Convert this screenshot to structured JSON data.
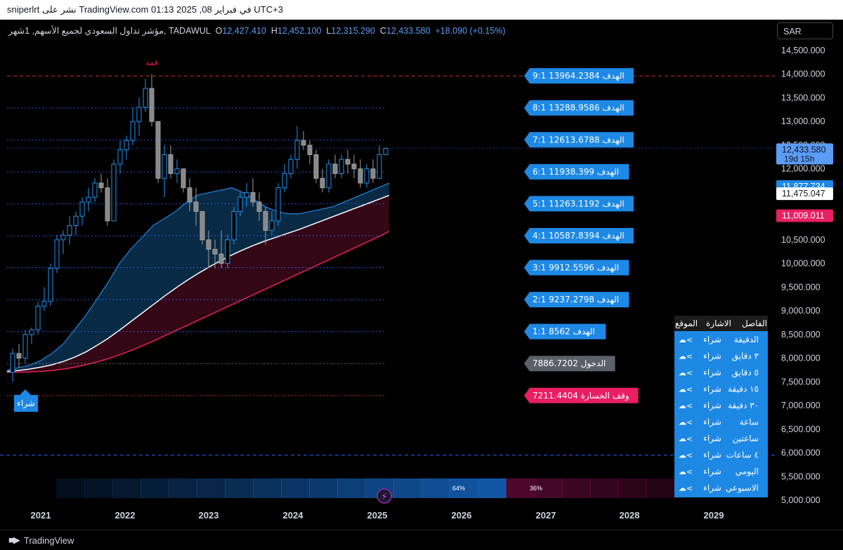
{
  "header": {
    "text": "sniperlrt نشر على TradingView.com في فبراير 08, 2025 01:13 UTC+3"
  },
  "legend": {
    "symbol": "مؤشر تداول السعودي لجميع الأسهم, 1شهر, TADAWUL",
    "o_label": "O",
    "o": "12,427.410",
    "h_label": "H",
    "h": "12,452.100",
    "l_label": "L",
    "l": "12,315.290",
    "c_label": "C",
    "c": "12,433.580",
    "change": "+18.090 (+0.15%)"
  },
  "currency": "SAR",
  "footer": {
    "brand": "TradingView"
  },
  "colors": {
    "up": "#4d4d4d",
    "down": "#888888",
    "line_up": "#2962ff",
    "blue_label": "#1e88e5",
    "red": "#f23645",
    "pink": "#e91e63",
    "gray_label": "#5d606b"
  },
  "chart_data": {
    "type": "candlestick",
    "ylim": [
      4800,
      14900
    ],
    "yticks": [
      5000,
      5500,
      6000,
      6500,
      7000,
      7500,
      8000,
      8500,
      9000,
      9500,
      10000,
      10500,
      11000,
      11500,
      12000,
      12500,
      13000,
      13500,
      14000,
      14500
    ],
    "ytick_labels": [
      "5,000.000",
      "5,500.000",
      "6,000.000",
      "6,500.000",
      "7,000.000",
      "7,500.000",
      "8,000.000",
      "8,500.000",
      "9,000.000",
      "9,500.000",
      "10,000.000",
      "10,500.000",
      "11,000.000",
      "11,500.000",
      "12,000.000",
      "12,500.000",
      "13,000.000",
      "13,500.000",
      "14,000.000",
      "14,500.000"
    ],
    "x_labels": [
      "2021",
      "2022",
      "2023",
      "2024",
      "2025",
      "2026",
      "2027",
      "2028",
      "2029"
    ],
    "peak_label": "قمة",
    "buy_label": "شراء",
    "candles": [
      {
        "o": 7700,
        "h": 8200,
        "l": 7500,
        "c": 8100
      },
      {
        "o": 8100,
        "h": 8300,
        "l": 7800,
        "c": 8000
      },
      {
        "o": 8000,
        "h": 8600,
        "l": 7900,
        "c": 8500
      },
      {
        "o": 8500,
        "h": 8650,
        "l": 8300,
        "c": 8600
      },
      {
        "o": 8600,
        "h": 9200,
        "l": 8500,
        "c": 9100
      },
      {
        "o": 9100,
        "h": 9500,
        "l": 9000,
        "c": 9200
      },
      {
        "o": 9200,
        "h": 10000,
        "l": 9100,
        "c": 9900
      },
      {
        "o": 9900,
        "h": 10600,
        "l": 9800,
        "c": 10500
      },
      {
        "o": 10500,
        "h": 10700,
        "l": 10200,
        "c": 10600
      },
      {
        "o": 10600,
        "h": 11000,
        "l": 10400,
        "c": 10800
      },
      {
        "o": 10800,
        "h": 11100,
        "l": 10600,
        "c": 11000
      },
      {
        "o": 11000,
        "h": 11400,
        "l": 10800,
        "c": 11300
      },
      {
        "o": 11300,
        "h": 11600,
        "l": 11100,
        "c": 11400
      },
      {
        "o": 11400,
        "h": 11800,
        "l": 11300,
        "c": 11700
      },
      {
        "o": 11700,
        "h": 11900,
        "l": 11500,
        "c": 11600
      },
      {
        "o": 11600,
        "h": 11800,
        "l": 10800,
        "c": 10900
      },
      {
        "o": 10900,
        "h": 12200,
        "l": 10900,
        "c": 12100
      },
      {
        "o": 12100,
        "h": 12600,
        "l": 11900,
        "c": 12400
      },
      {
        "o": 12400,
        "h": 12700,
        "l": 12200,
        "c": 12600
      },
      {
        "o": 12600,
        "h": 13300,
        "l": 12500,
        "c": 13000
      },
      {
        "o": 13000,
        "h": 13500,
        "l": 12700,
        "c": 13300
      },
      {
        "o": 13300,
        "h": 13900,
        "l": 13200,
        "c": 13700
      },
      {
        "o": 13700,
        "h": 14000,
        "l": 12900,
        "c": 13000
      },
      {
        "o": 13000,
        "h": 13000,
        "l": 11700,
        "c": 11800
      },
      {
        "o": 11800,
        "h": 12500,
        "l": 11400,
        "c": 12300
      },
      {
        "o": 12300,
        "h": 12500,
        "l": 11800,
        "c": 11900
      },
      {
        "o": 11900,
        "h": 12200,
        "l": 11700,
        "c": 12000
      },
      {
        "o": 12000,
        "h": 12000,
        "l": 11500,
        "c": 11600
      },
      {
        "o": 11600,
        "h": 11800,
        "l": 11100,
        "c": 11300
      },
      {
        "o": 11300,
        "h": 11600,
        "l": 10800,
        "c": 11100
      },
      {
        "o": 11100,
        "h": 11100,
        "l": 10400,
        "c": 10500
      },
      {
        "o": 10500,
        "h": 10700,
        "l": 9900,
        "c": 10300
      },
      {
        "o": 10300,
        "h": 10500,
        "l": 9900,
        "c": 10200
      },
      {
        "o": 10200,
        "h": 10700,
        "l": 9900,
        "c": 10000
      },
      {
        "o": 10000,
        "h": 10600,
        "l": 9900,
        "c": 10500
      },
      {
        "o": 10500,
        "h": 11200,
        "l": 10400,
        "c": 11100
      },
      {
        "o": 11100,
        "h": 11500,
        "l": 11000,
        "c": 11400
      },
      {
        "o": 11400,
        "h": 11700,
        "l": 11200,
        "c": 11500
      },
      {
        "o": 11500,
        "h": 11800,
        "l": 11200,
        "c": 11300
      },
      {
        "o": 11300,
        "h": 11500,
        "l": 10900,
        "c": 11100
      },
      {
        "o": 11100,
        "h": 11200,
        "l": 10400,
        "c": 10700
      },
      {
        "o": 10700,
        "h": 11100,
        "l": 10600,
        "c": 10900
      },
      {
        "o": 10900,
        "h": 11700,
        "l": 10800,
        "c": 11600
      },
      {
        "o": 11600,
        "h": 12100,
        "l": 11500,
        "c": 11900
      },
      {
        "o": 11900,
        "h": 12300,
        "l": 11800,
        "c": 12200
      },
      {
        "o": 12200,
        "h": 12900,
        "l": 12000,
        "c": 12600
      },
      {
        "o": 12600,
        "h": 12800,
        "l": 12400,
        "c": 12500
      },
      {
        "o": 12500,
        "h": 12600,
        "l": 12100,
        "c": 12300
      },
      {
        "o": 12300,
        "h": 12400,
        "l": 11700,
        "c": 11800
      },
      {
        "o": 11800,
        "h": 12000,
        "l": 11500,
        "c": 11600
      },
      {
        "o": 11600,
        "h": 12200,
        "l": 11500,
        "c": 12100
      },
      {
        "o": 12100,
        "h": 12300,
        "l": 11800,
        "c": 11900
      },
      {
        "o": 11900,
        "h": 12300,
        "l": 11800,
        "c": 12200
      },
      {
        "o": 12200,
        "h": 12400,
        "l": 11900,
        "c": 12100
      },
      {
        "o": 12100,
        "h": 12300,
        "l": 11800,
        "c": 12000
      },
      {
        "o": 12000,
        "h": 12200,
        "l": 11600,
        "c": 11700
      },
      {
        "o": 11700,
        "h": 12100,
        "l": 11600,
        "c": 12000
      },
      {
        "o": 12000,
        "h": 12200,
        "l": 11700,
        "c": 11800
      },
      {
        "o": 11800,
        "h": 12500,
        "l": 11800,
        "c": 12300
      },
      {
        "o": 12300,
        "h": 12452,
        "l": 12315,
        "c": 12433
      }
    ],
    "ma_upper": [
      7750,
      7800,
      7850,
      7950,
      8100,
      8300,
      8600,
      8900,
      9250,
      9600,
      10000,
      10300,
      10550,
      10800,
      10950,
      11100,
      11300,
      11450,
      11500,
      11550,
      11600,
      11500,
      11350,
      11200,
      11100,
      11050,
      11050,
      11100,
      11150,
      11200,
      11300,
      11400,
      11500,
      11600,
      11700
    ],
    "ma_mid": [
      7720,
      7740,
      7770,
      7810,
      7860,
      7930,
      8020,
      8130,
      8270,
      8420,
      8590,
      8770,
      8950,
      9130,
      9310,
      9480,
      9640,
      9790,
      9930,
      10060,
      10180,
      10290,
      10390,
      10480,
      10560,
      10640,
      10720,
      10810,
      10900,
      10990,
      11080,
      11170,
      11260,
      11350,
      11440
    ],
    "ma_lower": [
      7700,
      7705,
      7710,
      7720,
      7740,
      7770,
      7810,
      7860,
      7920,
      7990,
      8070,
      8160,
      8260,
      8360,
      8470,
      8580,
      8690,
      8800,
      8910,
      9020,
      9130,
      9240,
      9350,
      9460,
      9570,
      9680,
      9790,
      9900,
      10010,
      10120,
      10230,
      10340,
      10450,
      10560,
      10680
    ],
    "levels": [
      {
        "value": 13964.2384,
        "label": "الهدف",
        "text": "9:1 13964.2384",
        "type": "target"
      },
      {
        "value": 13288.9586,
        "label": "الهدف",
        "text": "8:1 13288.9586",
        "type": "target"
      },
      {
        "value": 12613.6788,
        "label": "الهدف",
        "text": "7:1 12613.6788",
        "type": "target"
      },
      {
        "value": 11938.399,
        "label": "الهدف",
        "text": "6:1 11938.399",
        "type": "target"
      },
      {
        "value": 11263.1192,
        "label": "الهدف",
        "text": "5:1 11263.1192",
        "type": "target"
      },
      {
        "value": 10587.8394,
        "label": "الهدف",
        "text": "4:1 10587.8394",
        "type": "target"
      },
      {
        "value": 9912.5596,
        "label": "الهدف",
        "text": "3:1 9912.5596",
        "type": "target"
      },
      {
        "value": 9237.2798,
        "label": "الهدف",
        "text": "2:1 9237.2798",
        "type": "target"
      },
      {
        "value": 8562,
        "label": "الهدف",
        "text": "1:1 8562",
        "type": "target"
      },
      {
        "value": 7886.7202,
        "label": "الدخول",
        "text": "7886.7202",
        "type": "entry"
      },
      {
        "value": 7211.4404,
        "label": "وقف الخسارة",
        "text": "7211.4404",
        "type": "stop"
      }
    ],
    "price_tags": [
      {
        "value": 12433.58,
        "text": "12,433.580",
        "sub": "19d 15h",
        "type": "current"
      },
      {
        "value": 11877.734,
        "text": "11,877.734",
        "type": "blue"
      },
      {
        "value": 11475.047,
        "text": "11,475.047",
        "type": "white"
      },
      {
        "value": 11009.011,
        "text": "11,009.011",
        "type": "pink"
      }
    ],
    "dashed_blue_level": 5950,
    "sentiment": {
      "bull": "64%",
      "bear": "36%"
    },
    "signal_table": {
      "headers": [
        "الفاصل",
        "الاشارة",
        "الموقع"
      ],
      "rows": [
        [
          "الدقيقة",
          "شراء"
        ],
        [
          "٣ دقايق",
          "شراء"
        ],
        [
          "٥ دقايق",
          "شراء"
        ],
        [
          "١٥ دقيقة",
          "شراء"
        ],
        [
          "٣٠ دقيقة",
          "شراء"
        ],
        [
          "ساعة",
          "شراء"
        ],
        [
          "ساعتين",
          "شراء"
        ],
        [
          "٤ ساعات",
          "شراء"
        ],
        [
          "اليومي",
          "شراء"
        ],
        [
          "الاسبوعي",
          "شراء"
        ]
      ]
    }
  }
}
